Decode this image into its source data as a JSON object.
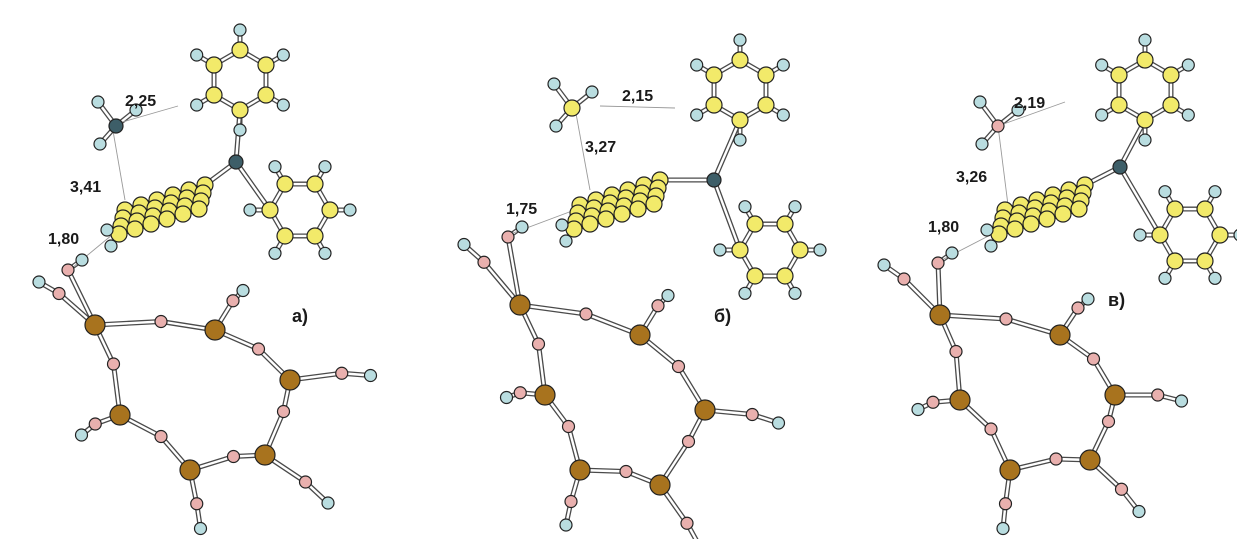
{
  "figure": {
    "panels": [
      {
        "id": "a",
        "label": "а)",
        "distances": [
          "2,25",
          "3,41",
          "1,80"
        ]
      },
      {
        "id": "b",
        "label": "б)",
        "distances": [
          "2,15",
          "3,27",
          "1,75"
        ]
      },
      {
        "id": "c",
        "label": "в)",
        "distances": [
          "2,19",
          "3,26",
          "1,80"
        ]
      }
    ]
  },
  "colors": {
    "carbon": "#f2ea6a",
    "hydrogen": "#b9dde0",
    "oxygen": "#e9b0ae",
    "nitrogen": "#3d5e68",
    "silicon": "#a8731e",
    "bond": "#4a4a4a",
    "background": "#ffffff"
  }
}
